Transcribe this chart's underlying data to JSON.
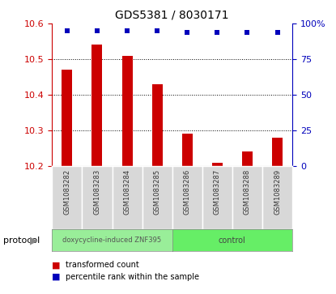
{
  "title": "GDS5381 / 8030171",
  "samples": [
    "GSM1083282",
    "GSM1083283",
    "GSM1083284",
    "GSM1083285",
    "GSM1083286",
    "GSM1083287",
    "GSM1083288",
    "GSM1083289"
  ],
  "transformed_count": [
    10.47,
    10.54,
    10.51,
    10.43,
    10.29,
    10.21,
    10.24,
    10.28
  ],
  "percentile_rank": [
    95,
    95,
    95,
    95,
    94,
    94,
    94,
    94
  ],
  "ylim_left": [
    10.2,
    10.6
  ],
  "ylim_right": [
    0,
    100
  ],
  "yticks_left": [
    10.2,
    10.3,
    10.4,
    10.5,
    10.6
  ],
  "yticks_right": [
    0,
    25,
    50,
    75,
    100
  ],
  "ytick_labels_right": [
    "0",
    "25",
    "50",
    "75",
    "100%"
  ],
  "dotted_lines": [
    10.3,
    10.4,
    10.5
  ],
  "bar_color": "#cc0000",
  "dot_color": "#0000bb",
  "protocol_groups": [
    {
      "label": "doxycycline-induced ZNF395",
      "count": 4,
      "color": "#99ee99"
    },
    {
      "label": "control",
      "count": 4,
      "color": "#66ee66"
    }
  ],
  "protocol_label": "protocol",
  "legend_items": [
    {
      "color": "#cc0000",
      "label": "transformed count"
    },
    {
      "color": "#0000bb",
      "label": "percentile rank within the sample"
    }
  ],
  "bar_width": 0.35,
  "left_tick_color": "#cc0000",
  "right_tick_color": "#0000bb",
  "sample_box_color": "#d8d8d8",
  "sample_label_color": "#333333"
}
